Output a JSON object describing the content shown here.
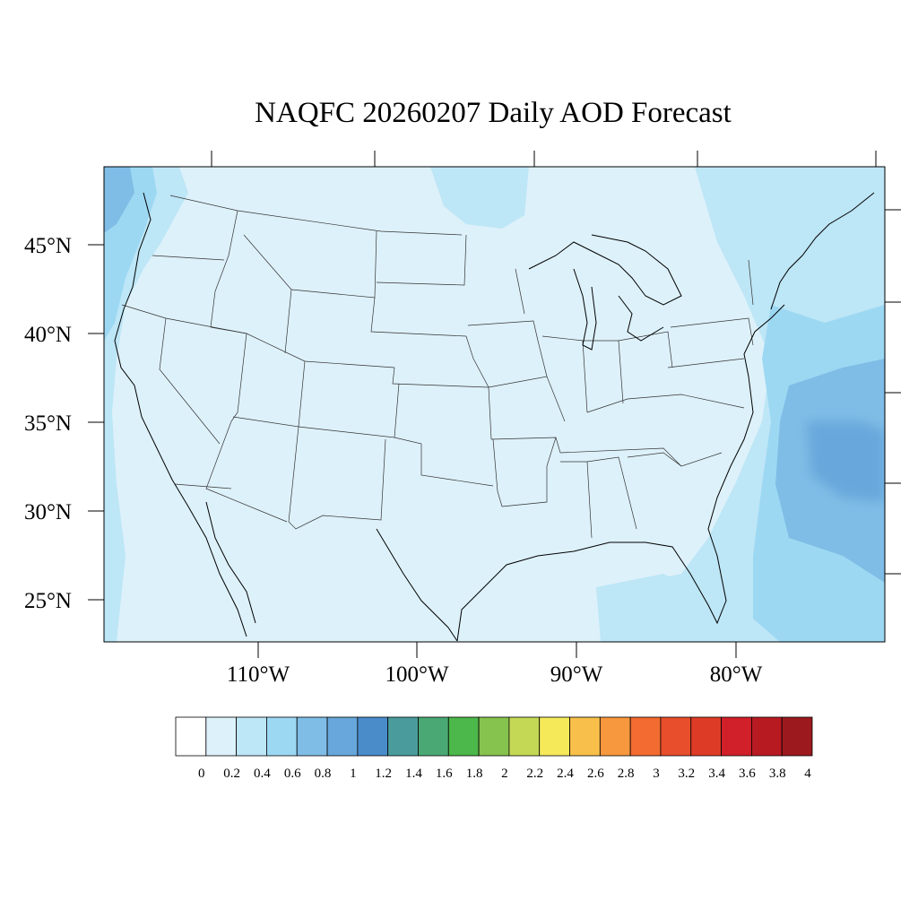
{
  "title": "NAQFC 20260207 Daily AOD Forecast",
  "map": {
    "projection": "lambert-conformal",
    "region": "Contiguous United States",
    "lat_labels": [
      "45°N",
      "40°N",
      "35°N",
      "30°N",
      "25°N"
    ],
    "lon_labels": [
      "110°W",
      "100°W",
      "90°W",
      "80°W"
    ],
    "background_value_color": "#ddf1fa",
    "features": [
      "coastlines",
      "state-boundaries",
      "aod-contours"
    ]
  },
  "colorbar": {
    "labels": [
      "0",
      "0.2",
      "0.4",
      "0.6",
      "0.8",
      "1",
      "1.2",
      "1.4",
      "1.6",
      "1.8",
      "2",
      "2.2",
      "2.4",
      "2.6",
      "2.8",
      "3",
      "3.2",
      "3.4",
      "3.6",
      "3.8",
      "4"
    ],
    "colors": [
      "#ffffff",
      "#ddf1fa",
      "#bde6f6",
      "#9dd8f3",
      "#7fbde6",
      "#67a7db",
      "#4a8cca",
      "#4a9c9c",
      "#4aa874",
      "#4cb74a",
      "#86c24e",
      "#c4d856",
      "#f5e95a",
      "#f8c04a",
      "#f7983e",
      "#f36b30",
      "#e84e2c",
      "#de3b27",
      "#d1202a",
      "#b81a22",
      "#9c1a1e"
    ]
  },
  "chart_data": {
    "type": "heatmap",
    "title": "NAQFC 20260207 Daily AOD Forecast",
    "variable": "AOD",
    "colorbar_ticks": [
      0,
      0.2,
      0.4,
      0.6,
      0.8,
      1,
      1.2,
      1.4,
      1.6,
      1.8,
      2,
      2.2,
      2.4,
      2.6,
      2.8,
      3,
      3.2,
      3.4,
      3.6,
      3.8,
      4
    ],
    "regions": [
      {
        "area": "continental interior",
        "aod_range": [
          0.2,
          0.4
        ]
      },
      {
        "area": "Pacific coast / Washington",
        "aod_range": [
          0.4,
          0.8
        ]
      },
      {
        "area": "upper Great Lakes north",
        "aod_range": [
          0.4,
          0.6
        ]
      },
      {
        "area": "western Atlantic",
        "aod_range": [
          0.6,
          1.0
        ]
      },
      {
        "area": "Gulf of Mexico",
        "aod_range": [
          0.4,
          0.6
        ]
      }
    ]
  }
}
